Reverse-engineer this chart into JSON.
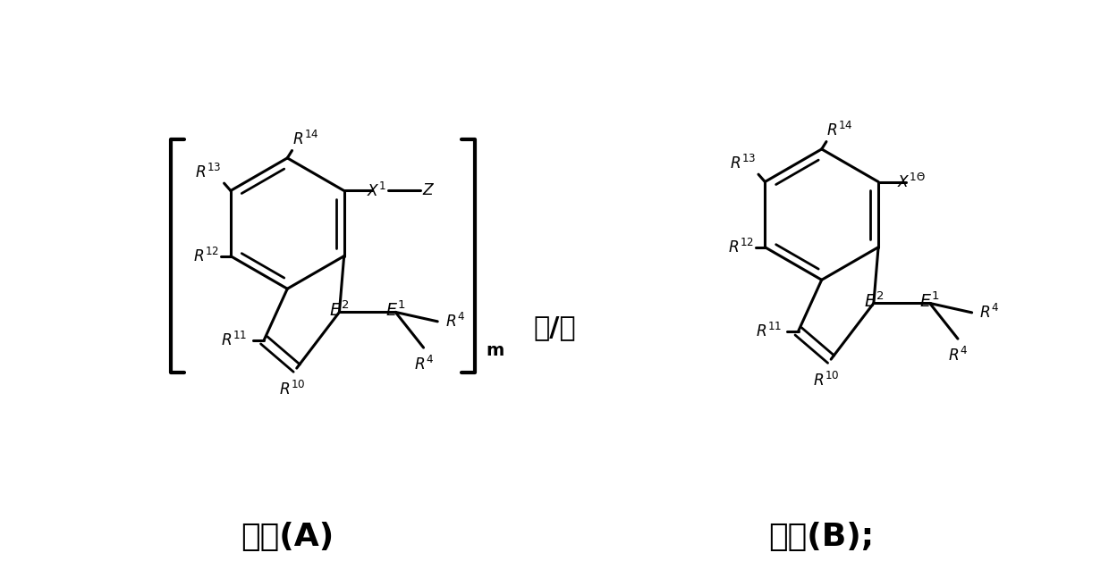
{
  "background": "#ffffff",
  "title_A": "通式(A)",
  "title_B": "通式(B);",
  "middle_text": "和/或",
  "bracket_m": "m",
  "figsize": [
    12.4,
    6.47
  ],
  "dpi": 100
}
